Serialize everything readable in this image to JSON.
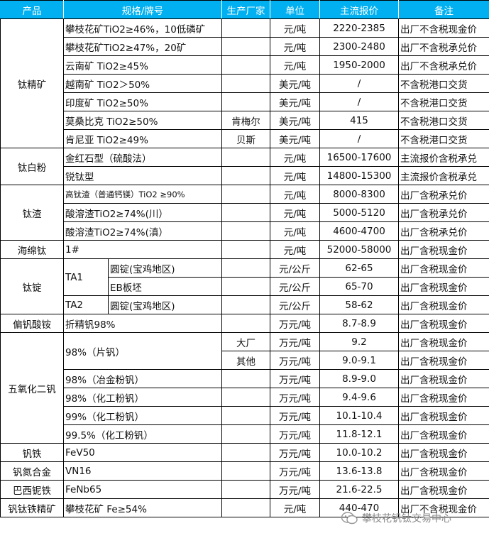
{
  "header": {
    "columns": [
      "产品",
      "规格/牌号",
      "生产厂家",
      "单位",
      "主流报价",
      "备注"
    ],
    "bg_color": "#00b0f0"
  },
  "groups": [
    {
      "product": "钛精矿",
      "rows": [
        {
          "spec": "攀枝花矿TiO2≥46%，10低磷矿",
          "producer": "",
          "unit": "元/吨",
          "price": "2220-2385",
          "note": "出厂不含税现金价"
        },
        {
          "spec": "攀枝花矿TiO2≥47%，20矿",
          "producer": "",
          "unit": "元/吨",
          "price": "2300-2480",
          "note": "出厂不含税承兑价"
        },
        {
          "spec": "云南矿 TiO2≥45%",
          "producer": "",
          "unit": "元/吨",
          "price": "1950-2000",
          "note": "出厂不含税承兑价"
        },
        {
          "spec": "越南矿 TiO2＞50%",
          "producer": "",
          "unit": "美元/吨",
          "price": "/",
          "note": "不含税港口交货"
        },
        {
          "spec": "印度矿 TiO2≥50%",
          "producer": "",
          "unit": "美元/吨",
          "price": "/",
          "note": "不含税港口交货"
        },
        {
          "spec": "莫桑比克 TiO2≥50%",
          "producer": "肯梅尔",
          "unit": "美元/吨",
          "price": "415",
          "note": "不含税港口交货"
        },
        {
          "spec": "肯尼亚 TiO2≥49%",
          "producer": "贝斯",
          "unit": "美元/吨",
          "price": "/",
          "note": "不含税港口交货"
        }
      ]
    },
    {
      "product": "钛白粉",
      "rows": [
        {
          "spec": "金红石型（硫酸法）",
          "producer": "",
          "unit": "元/吨",
          "price": "16500-17600",
          "note": "主流报价含税承兑"
        },
        {
          "spec": "锐钛型",
          "producer": "",
          "unit": "元/吨",
          "price": "14800-15300",
          "note": "主流报价含税承兑"
        }
      ]
    },
    {
      "product": "钛渣",
      "rows": [
        {
          "spec": "高钛渣（普通钙镁）TiO2 ≥90%",
          "small": true,
          "producer": "",
          "unit": "元/吨",
          "price": "8000-8300",
          "note": "出厂含税承兑价"
        },
        {
          "spec": "酸溶渣TiO2≥74%(川）",
          "producer": "",
          "unit": "元/吨",
          "price": "5000-5120",
          "note": "出厂含税承兑价"
        },
        {
          "spec": "酸溶渣TiO2≥74%(滇）",
          "producer": "",
          "unit": "元/吨",
          "price": "4600-4700",
          "note": "出厂含税承兑价"
        }
      ]
    },
    {
      "product": "海绵钛",
      "rows": [
        {
          "spec": "1#",
          "producer": "",
          "unit": "元/吨",
          "price": "52000-58000",
          "note": "出厂含税现金价"
        }
      ]
    },
    {
      "product": "钛锭",
      "rows": [
        {
          "grade": "TA1",
          "spec": "圆锭(宝鸡地区)",
          "producer": "",
          "unit": "元/公斤",
          "price": "62-65",
          "note": "出厂含税现金价"
        },
        {
          "grade": null,
          "spec": "EB板坯",
          "producer": "",
          "unit": "元/公斤",
          "price": "65-70",
          "note": "出厂含税现金价"
        },
        {
          "grade": "TA2",
          "spec": "圆锭(宝鸡地区)",
          "producer": "",
          "unit": "元/公斤",
          "price": "58-62",
          "note": "出厂含税现金价"
        }
      ]
    },
    {
      "product": "偏钒酸铵",
      "rows": [
        {
          "spec": "折精钒98%",
          "producer": "",
          "unit": "万元/吨",
          "price": "8.7-8.9",
          "note": "出厂含税现金价"
        }
      ]
    },
    {
      "product": "五氧化二钒",
      "rows": [
        {
          "spec": "98%（片钒）",
          "producer": "大厂",
          "unit": "万元/吨",
          "price": "9.2",
          "note": "出厂含税现金价"
        },
        {
          "spec": null,
          "producer": "其他",
          "unit": "万元/吨",
          "price": "9.0-9.1",
          "note": "出厂含税现金价"
        },
        {
          "spec": "98%（冶金粉钒）",
          "producer": "",
          "unit": "万元/吨",
          "price": "8.9-9.0",
          "note": "出厂含税现金价"
        },
        {
          "spec": "98%（化工粉钒）",
          "producer": "",
          "unit": "万元/吨",
          "price": "9.4-9.6",
          "note": "出厂含税现金价"
        },
        {
          "spec": "99%（化工粉钒）",
          "producer": "",
          "unit": "万元/吨",
          "price": "10.1-10.4",
          "note": "出厂含税现金价"
        },
        {
          "spec": "99.5%（化工粉钒）",
          "producer": "",
          "unit": "万元/吨",
          "price": "11.8-12.1",
          "note": "出厂含税现金价"
        }
      ]
    },
    {
      "product": "钒铁",
      "rows": [
        {
          "spec": "FeV50",
          "producer": "",
          "unit": "万元/吨",
          "price": "10.0-10.2",
          "note": "出厂含税现金价"
        }
      ]
    },
    {
      "product": "钒氮合金",
      "rows": [
        {
          "spec": "VN16",
          "producer": "",
          "unit": "万元/吨",
          "price": "13.6-13.8",
          "note": "出厂含税现金价"
        }
      ]
    },
    {
      "product": "巴西铌铁",
      "rows": [
        {
          "spec": "FeNb65",
          "producer": "",
          "unit": "万元/吨",
          "price": "21.6-22.5",
          "note": "出厂含税现金价"
        }
      ]
    },
    {
      "product": "钒钛铁精矿",
      "rows": [
        {
          "spec": "攀枝花矿 Fe≥54%",
          "producer": "",
          "unit": "元/吨",
          "price": "440-470",
          "note": "出厂不含税现金价"
        }
      ]
    }
  ],
  "watermark": {
    "text": "攀枝花钒钛交易中心",
    "icon": "wechat-icon"
  }
}
